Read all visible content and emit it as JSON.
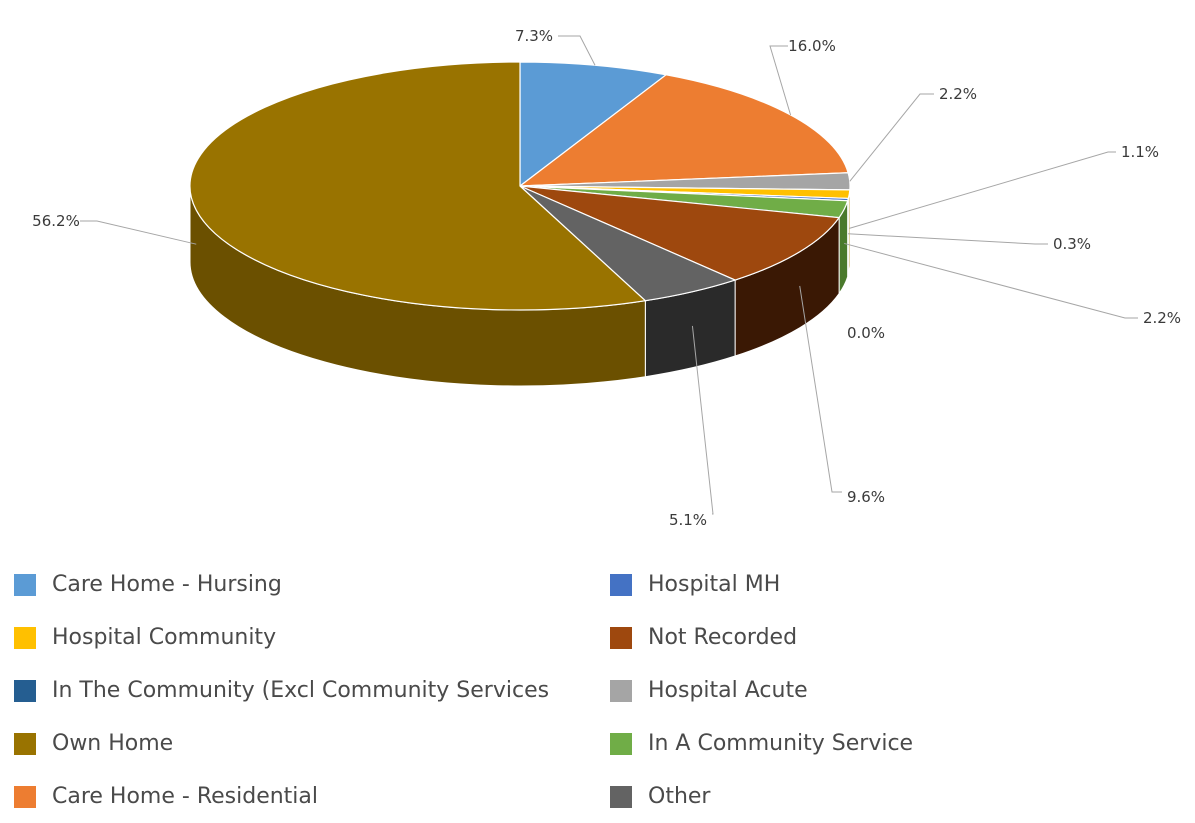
{
  "chart_data": {
    "type": "pie",
    "slices": [
      {
        "name": "Care Home - Hursing",
        "value": 7.3,
        "label": "7.3%",
        "color": "#5b9bd5",
        "side": "#3a6f9e"
      },
      {
        "name": "Care Home - Residential",
        "value": 16.0,
        "label": "16.0%",
        "color": "#ed7d31",
        "side": "#a8531b"
      },
      {
        "name": "Hospital Acute",
        "value": 2.2,
        "label": "2.2%",
        "color": "#a5a5a5",
        "side": "#707070"
      },
      {
        "name": "Hospital Community",
        "value": 1.1,
        "label": "1.1%",
        "color": "#ffc000",
        "side": "#b08400"
      },
      {
        "name": "Hospital MH",
        "value": 0.3,
        "label": "0.3%",
        "color": "#4472c4",
        "side": "#2c4d87"
      },
      {
        "name": "In A Community Service",
        "value": 2.2,
        "label": "2.2%",
        "color": "#70ad47",
        "side": "#4a7a2c"
      },
      {
        "name": "In The Community (Excl Community Services",
        "value": 0.0,
        "label": "0.0%",
        "color": "#255e91",
        "side": "#163a5a"
      },
      {
        "name": "Not Recorded",
        "value": 9.6,
        "label": "9.6%",
        "color": "#9e480e",
        "side": "#3a1804"
      },
      {
        "name": "Other",
        "value": 5.1,
        "label": "5.1%",
        "color": "#636363",
        "side": "#2a2a2a"
      },
      {
        "name": "Own Home",
        "value": 56.2,
        "label": "56.2%",
        "color": "#997300",
        "side": "#6b5000"
      }
    ],
    "legend_position": "bottom",
    "legend": [
      {
        "name": "Care Home - Hursing",
        "color": "#5b9bd5"
      },
      {
        "name": "Hospital MH",
        "color": "#4472c4"
      },
      {
        "name": "Hospital Community",
        "color": "#ffc000"
      },
      {
        "name": "Not Recorded",
        "color": "#9e480e"
      },
      {
        "name": "In The Community (Excl Community Services",
        "color": "#255e91"
      },
      {
        "name": "Hospital Acute",
        "color": "#a5a5a5"
      },
      {
        "name": "Own Home",
        "color": "#997300"
      },
      {
        "name": "In A Community Service",
        "color": "#70ad47"
      },
      {
        "name": "Care Home - Residential",
        "color": "#ed7d31"
      },
      {
        "name": "Other",
        "color": "#636363"
      }
    ]
  }
}
